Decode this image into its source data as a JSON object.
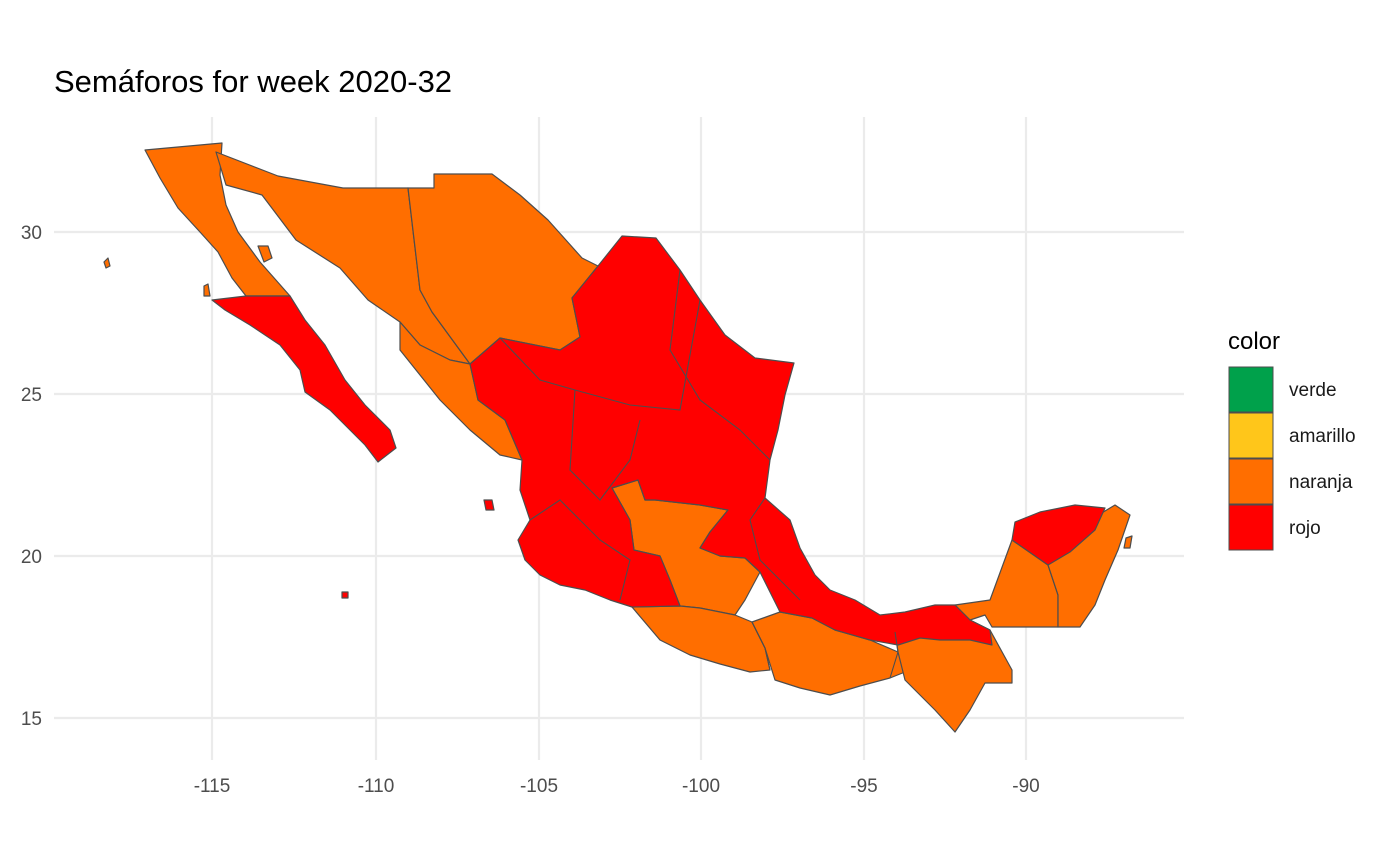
{
  "title": "Semáforos for week 2020-32",
  "axes": {
    "x_ticks": [
      "-115",
      "-110",
      "-105",
      "-100",
      "-95",
      "-90"
    ],
    "y_ticks": [
      "30",
      "25",
      "20",
      "15"
    ],
    "xlim": [
      -118.5,
      -86.5
    ],
    "ylim": [
      14.3,
      32.9
    ],
    "grid": true
  },
  "legend": {
    "title": "color",
    "placement": "right",
    "items": [
      {
        "label": "verde",
        "color": "#00A14B"
      },
      {
        "label": "amarillo",
        "color": "#FFC61A"
      },
      {
        "label": "naranja",
        "color": "#FF6E00"
      },
      {
        "label": "rojo",
        "color": "#FF0000"
      }
    ]
  },
  "colors": {
    "border": "#4d4d4d",
    "grid": "#ebebeb",
    "background": "#ffffff"
  },
  "states": [
    {
      "name": "Baja California",
      "status": "naranja"
    },
    {
      "name": "Baja California Sur",
      "status": "rojo"
    },
    {
      "name": "Sonora",
      "status": "naranja"
    },
    {
      "name": "Chihuahua",
      "status": "naranja"
    },
    {
      "name": "Sinaloa",
      "status": "naranja"
    },
    {
      "name": "Coahuila",
      "status": "rojo"
    },
    {
      "name": "Nuevo León",
      "status": "rojo"
    },
    {
      "name": "Tamaulipas",
      "status": "rojo"
    },
    {
      "name": "Durango",
      "status": "rojo"
    },
    {
      "name": "Zacatecas",
      "status": "rojo"
    },
    {
      "name": "San Luis Potosí",
      "status": "rojo"
    },
    {
      "name": "Nayarit",
      "status": "rojo"
    },
    {
      "name": "Aguascalientes",
      "status": "naranja"
    },
    {
      "name": "Jalisco",
      "status": "rojo"
    },
    {
      "name": "Guanajuato",
      "status": "naranja"
    },
    {
      "name": "Querétaro",
      "status": "naranja"
    },
    {
      "name": "Hidalgo",
      "status": "rojo"
    },
    {
      "name": "Veracruz",
      "status": "rojo"
    },
    {
      "name": "Colima",
      "status": "rojo"
    },
    {
      "name": "Michoacán",
      "status": "rojo"
    },
    {
      "name": "Estado de México",
      "status": "naranja"
    },
    {
      "name": "Ciudad de México",
      "status": "naranja"
    },
    {
      "name": "Morelos",
      "status": "naranja"
    },
    {
      "name": "Tlaxcala",
      "status": "naranja"
    },
    {
      "name": "Puebla",
      "status": "rojo"
    },
    {
      "name": "Guerrero",
      "status": "naranja"
    },
    {
      "name": "Oaxaca",
      "status": "naranja"
    },
    {
      "name": "Tabasco",
      "status": "rojo"
    },
    {
      "name": "Chiapas",
      "status": "naranja"
    },
    {
      "name": "Campeche",
      "status": "naranja"
    },
    {
      "name": "Yucatán",
      "status": "rojo"
    },
    {
      "name": "Quintana Roo",
      "status": "naranja"
    }
  ]
}
